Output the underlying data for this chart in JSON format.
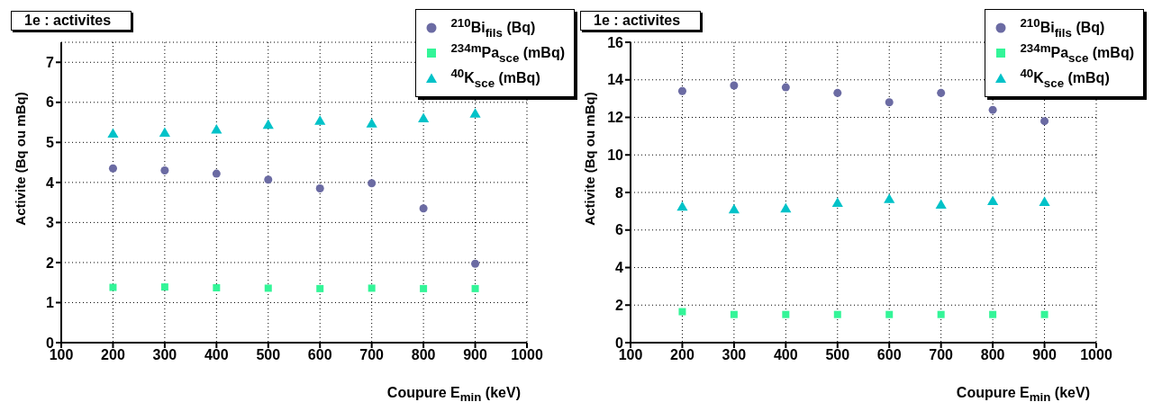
{
  "chart_data": [
    {
      "type": "scatter",
      "title": "1e : activites",
      "xlabel": "Coupure E$_{min}$ (keV)",
      "ylabel": "Activite (Bq ou mBq)",
      "x": [
        200,
        300,
        400,
        500,
        600,
        700,
        800,
        900
      ],
      "series": [
        {
          "name": "$^{210}$Bi$_{fils}$ (Bq)",
          "color": "#6b6ba3",
          "marker": "circle",
          "values": [
            4.35,
            4.3,
            4.22,
            4.07,
            3.85,
            3.98,
            3.35,
            1.97
          ]
        },
        {
          "name": "$^{234m}$Pa$_{sce}$ (mBq)",
          "color": "#33f598",
          "marker": "square",
          "values": [
            1.38,
            1.39,
            1.37,
            1.36,
            1.35,
            1.36,
            1.35,
            1.35
          ]
        },
        {
          "name": "$^{40}$K$_{sce}$ (mBq)",
          "color": "#00c2c8",
          "marker": "triangle",
          "values": [
            5.2,
            5.22,
            5.3,
            5.42,
            5.52,
            5.45,
            5.58,
            5.7
          ]
        }
      ],
      "xlim": [
        100,
        1000
      ],
      "xticks": [
        100,
        200,
        300,
        400,
        500,
        600,
        700,
        800,
        900,
        1000
      ],
      "ylim": [
        0,
        7.5
      ],
      "yticks": [
        0,
        1,
        2,
        3,
        4,
        5,
        6,
        7
      ],
      "grid": true,
      "legend": "top right"
    },
    {
      "type": "scatter",
      "title": "1e : activites",
      "xlabel": "Coupure E$_{min}$ (keV)",
      "ylabel": "Activite (Bq ou mBq)",
      "x": [
        200,
        300,
        400,
        500,
        600,
        700,
        800,
        900
      ],
      "series": [
        {
          "name": "$^{210}$Bi$_{fils}$ (Bq)",
          "color": "#6b6ba3",
          "marker": "circle",
          "values": [
            13.4,
            13.7,
            13.6,
            13.3,
            12.8,
            13.3,
            12.4,
            11.8
          ]
        },
        {
          "name": "$^{234m}$Pa$_{sce}$ (mBq)",
          "color": "#33f598",
          "marker": "square",
          "values": [
            1.65,
            1.5,
            1.5,
            1.5,
            1.5,
            1.5,
            1.5,
            1.5
          ]
        },
        {
          "name": "$^{40}$K$_{sce}$ (mBq)",
          "color": "#00c2c8",
          "marker": "triangle",
          "values": [
            7.2,
            7.05,
            7.1,
            7.4,
            7.6,
            7.3,
            7.5,
            7.45
          ]
        }
      ],
      "xlim": [
        100,
        1000
      ],
      "xticks": [
        100,
        200,
        300,
        400,
        500,
        600,
        700,
        800,
        900,
        1000
      ],
      "ylim": [
        0,
        16
      ],
      "yticks": [
        0,
        2,
        4,
        6,
        8,
        10,
        12,
        14,
        16
      ],
      "grid": true,
      "legend": "top right"
    }
  ]
}
